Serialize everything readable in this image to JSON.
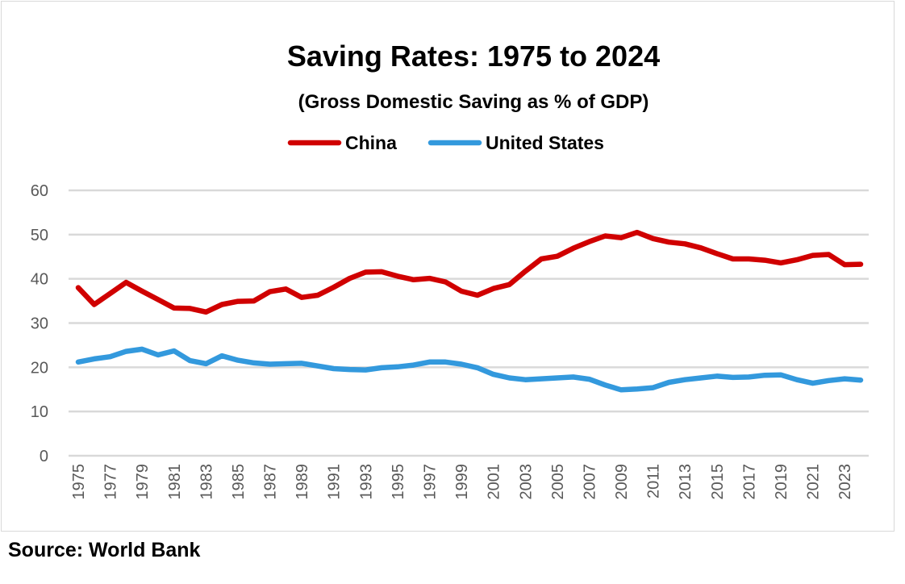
{
  "chart_data": {
    "type": "line",
    "title": "Saving Rates: 1975 to 2024",
    "subtitle": "(Gross Domestic Saving as % of GDP)",
    "xlabel": "",
    "ylabel": "",
    "ylim": [
      0,
      60
    ],
    "yticks": [
      0,
      10,
      20,
      30,
      40,
      50,
      60
    ],
    "grid": true,
    "legend_placement": "top-center",
    "x": [
      1975,
      1976,
      1977,
      1978,
      1979,
      1980,
      1981,
      1982,
      1983,
      1984,
      1985,
      1986,
      1987,
      1988,
      1989,
      1990,
      1991,
      1992,
      1993,
      1994,
      1995,
      1996,
      1997,
      1998,
      1999,
      2000,
      2001,
      2002,
      2003,
      2004,
      2005,
      2006,
      2007,
      2008,
      2009,
      2010,
      2011,
      2012,
      2013,
      2014,
      2015,
      2016,
      2017,
      2018,
      2019,
      2020,
      2021,
      2022,
      2023,
      2024
    ],
    "xtick_labels": [
      "1975",
      "1977",
      "1979",
      "1981",
      "1983",
      "1985",
      "1987",
      "1989",
      "1991",
      "1993",
      "1995",
      "1997",
      "1999",
      "2001",
      "2003",
      "2005",
      "2007",
      "2009",
      "2011",
      "2013",
      "2015",
      "2017",
      "2019",
      "2021",
      "2023"
    ],
    "series": [
      {
        "name": "China",
        "color": "#d00000",
        "values": [
          38.0,
          34.2,
          36.7,
          39.2,
          37.2,
          35.3,
          33.4,
          33.3,
          32.5,
          34.2,
          34.9,
          35.0,
          37.1,
          37.7,
          35.8,
          36.3,
          38.1,
          40.1,
          41.5,
          41.6,
          40.6,
          39.8,
          40.1,
          39.3,
          37.2,
          36.3,
          37.8,
          38.7,
          41.7,
          44.5,
          45.1,
          46.9,
          48.4,
          49.7,
          49.3,
          50.5,
          49.1,
          48.3,
          47.9,
          47.0,
          45.7,
          44.5,
          44.5,
          44.2,
          43.6,
          44.3,
          45.3,
          45.5,
          43.2,
          43.3
        ]
      },
      {
        "name": "United States",
        "color": "#3399dd",
        "values": [
          21.2,
          21.9,
          22.4,
          23.6,
          24.1,
          22.8,
          23.7,
          21.5,
          20.8,
          22.6,
          21.6,
          21.0,
          20.7,
          20.8,
          20.9,
          20.3,
          19.7,
          19.5,
          19.4,
          19.9,
          20.1,
          20.5,
          21.2,
          21.2,
          20.7,
          19.9,
          18.4,
          17.6,
          17.2,
          17.4,
          17.6,
          17.8,
          17.3,
          16.0,
          14.9,
          15.1,
          15.4,
          16.6,
          17.2,
          17.6,
          18.0,
          17.7,
          17.8,
          18.2,
          18.3,
          17.2,
          16.4,
          17.0,
          17.4,
          17.1
        ]
      }
    ]
  },
  "footer": {
    "source": "Source: World Bank"
  }
}
